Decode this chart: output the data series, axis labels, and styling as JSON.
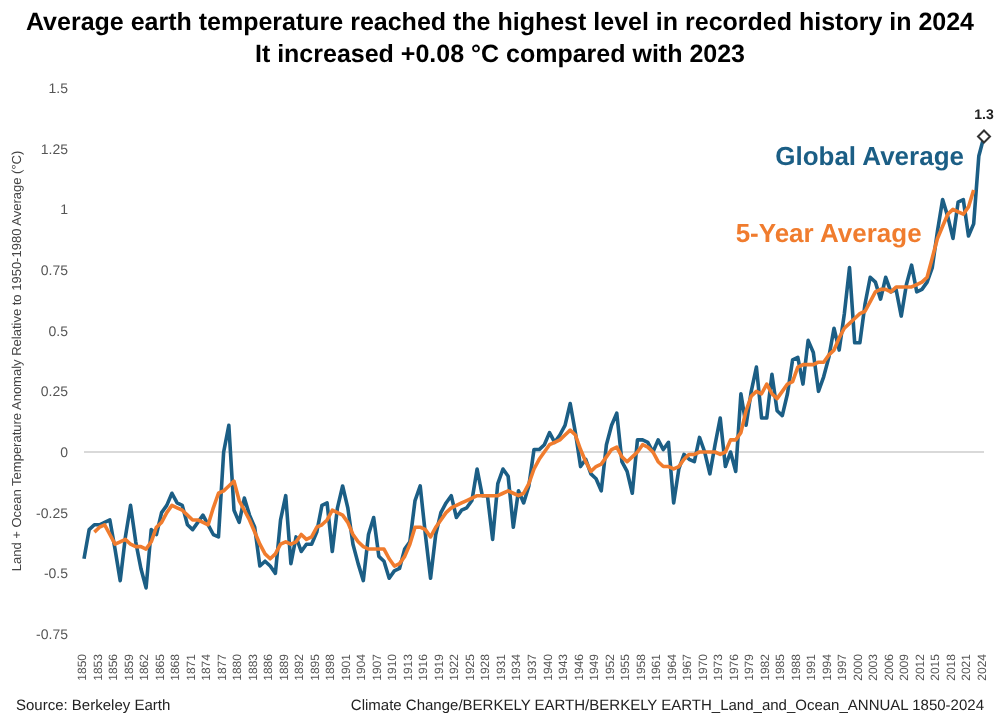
{
  "chart_data": {
    "type": "line",
    "title": "Average earth temperature reached the highest level in recorded history in 2024",
    "subtitle": "It increased +0.08 °C compared with 2023",
    "ylabel": "Land + Ocean Temperature Anomaly Relative to 1950-1980 Average (°C)",
    "categories": [
      "1850",
      null,
      null,
      "1853",
      null,
      null,
      "1856",
      null,
      null,
      "1859",
      null,
      null,
      "1862",
      null,
      null,
      "1865",
      null,
      null,
      "1868",
      null,
      null,
      "1871",
      null,
      null,
      "1874",
      null,
      null,
      "1877",
      null,
      null,
      "1880",
      null,
      null,
      "1883",
      null,
      null,
      "1886",
      null,
      null,
      "1889",
      null,
      null,
      "1892",
      null,
      null,
      "1895",
      null,
      null,
      "1898",
      null,
      null,
      "1901",
      null,
      null,
      "1904",
      null,
      null,
      "1907",
      null,
      null,
      "1910",
      null,
      null,
      "1913",
      null,
      null,
      "1916",
      null,
      null,
      "1919",
      null,
      null,
      "1922",
      null,
      null,
      "1925",
      null,
      null,
      "1928",
      null,
      null,
      "1931",
      null,
      null,
      "1934",
      null,
      null,
      "1937",
      null,
      null,
      "1940",
      null,
      null,
      "1943",
      null,
      null,
      "1946",
      null,
      null,
      "1949",
      null,
      null,
      "1952",
      null,
      null,
      "1955",
      null,
      null,
      "1958",
      null,
      null,
      "1961",
      null,
      null,
      "1964",
      null,
      null,
      "1967",
      null,
      null,
      "1970",
      null,
      null,
      "1973",
      null,
      null,
      "1976",
      null,
      null,
      "1979",
      null,
      null,
      "1982",
      null,
      null,
      "1985",
      null,
      null,
      "1988",
      null,
      null,
      "1991",
      null,
      null,
      "1994",
      null,
      null,
      "1997",
      null,
      null,
      "2000",
      null,
      null,
      "2003",
      null,
      null,
      "2006",
      null,
      null,
      "2009",
      null,
      null,
      "2012",
      null,
      null,
      "2015",
      null,
      null,
      "2018",
      null,
      null,
      "2021",
      null,
      null,
      "2024"
    ],
    "series": [
      {
        "name": "Global Average",
        "color": "#1b5e85",
        "values": [
          -0.44,
          -0.32,
          -0.3,
          -0.3,
          -0.29,
          -0.28,
          -0.4,
          -0.53,
          -0.35,
          -0.22,
          -0.37,
          -0.48,
          -0.56,
          -0.32,
          -0.34,
          -0.25,
          -0.22,
          -0.17,
          -0.21,
          -0.22,
          -0.3,
          -0.32,
          -0.29,
          -0.26,
          -0.3,
          -0.34,
          -0.35,
          0.0,
          0.11,
          -0.24,
          -0.29,
          -0.19,
          -0.26,
          -0.31,
          -0.47,
          -0.45,
          -0.47,
          -0.5,
          -0.28,
          -0.18,
          -0.46,
          -0.35,
          -0.41,
          -0.38,
          -0.38,
          -0.33,
          -0.22,
          -0.21,
          -0.41,
          -0.23,
          -0.14,
          -0.23,
          -0.38,
          -0.46,
          -0.53,
          -0.34,
          -0.27,
          -0.43,
          -0.45,
          -0.52,
          -0.49,
          -0.48,
          -0.4,
          -0.37,
          -0.2,
          -0.14,
          -0.34,
          -0.52,
          -0.34,
          -0.25,
          -0.21,
          -0.18,
          -0.27,
          -0.24,
          -0.23,
          -0.2,
          -0.07,
          -0.18,
          -0.18,
          -0.36,
          -0.13,
          -0.07,
          -0.1,
          -0.31,
          -0.16,
          -0.21,
          -0.14,
          0.01,
          0.01,
          0.03,
          0.08,
          0.04,
          0.07,
          0.11,
          0.2,
          0.08,
          -0.06,
          -0.03,
          -0.09,
          -0.11,
          -0.16,
          0.03,
          0.11,
          0.16,
          -0.04,
          -0.08,
          -0.17,
          0.05,
          0.05,
          0.04,
          0.0,
          0.05,
          0.01,
          0.04,
          -0.21,
          -0.07,
          -0.01,
          -0.03,
          -0.04,
          0.06,
          0.0,
          -0.09,
          0.03,
          0.14,
          -0.06,
          0.0,
          -0.08,
          0.24,
          0.11,
          0.25,
          0.35,
          0.14,
          0.14,
          0.32,
          0.17,
          0.15,
          0.24,
          0.38,
          0.39,
          0.28,
          0.46,
          0.41,
          0.25,
          0.31,
          0.39,
          0.51,
          0.42,
          0.57,
          0.76,
          0.45,
          0.45,
          0.61,
          0.72,
          0.7,
          0.63,
          0.72,
          0.66,
          0.67,
          0.56,
          0.69,
          0.77,
          0.66,
          0.67,
          0.7,
          0.76,
          0.91,
          1.04,
          0.97,
          0.88,
          1.03,
          1.04,
          0.89,
          0.94,
          1.22,
          1.3
        ]
      },
      {
        "name": "5-Year Average",
        "color": "#f07c2e",
        "values": [
          null,
          null,
          -0.33,
          -0.31,
          -0.3,
          -0.34,
          -0.38,
          -0.37,
          -0.36,
          -0.38,
          -0.39,
          -0.39,
          -0.4,
          -0.37,
          -0.31,
          -0.29,
          -0.25,
          -0.22,
          -0.23,
          -0.24,
          -0.26,
          -0.28,
          -0.28,
          -0.29,
          -0.3,
          -0.23,
          -0.17,
          -0.16,
          -0.14,
          -0.12,
          -0.2,
          -0.24,
          -0.28,
          -0.33,
          -0.38,
          -0.42,
          -0.44,
          -0.42,
          -0.38,
          -0.37,
          -0.38,
          -0.37,
          -0.34,
          -0.36,
          -0.35,
          -0.31,
          -0.3,
          -0.28,
          -0.24,
          -0.25,
          -0.26,
          -0.29,
          -0.34,
          -0.37,
          -0.39,
          -0.4,
          -0.4,
          -0.4,
          -0.4,
          -0.44,
          -0.47,
          -0.46,
          -0.43,
          -0.38,
          -0.31,
          -0.31,
          -0.32,
          -0.35,
          -0.31,
          -0.28,
          -0.25,
          -0.23,
          -0.22,
          -0.21,
          -0.2,
          -0.19,
          -0.18,
          -0.18,
          -0.18,
          -0.18,
          -0.18,
          -0.17,
          -0.16,
          -0.17,
          -0.18,
          -0.17,
          -0.13,
          -0.07,
          -0.03,
          0.0,
          0.03,
          0.04,
          0.05,
          0.07,
          0.09,
          0.07,
          0.01,
          -0.04,
          -0.08,
          -0.06,
          -0.05,
          -0.02,
          0.01,
          0.02,
          -0.02,
          -0.04,
          -0.02,
          0.0,
          0.03,
          0.02,
          0.0,
          -0.04,
          -0.06,
          -0.06,
          -0.07,
          -0.06,
          -0.03,
          -0.01,
          -0.01,
          0.0,
          0.0,
          0.0,
          0.0,
          -0.01,
          0.0,
          0.05,
          0.05,
          0.08,
          0.17,
          0.23,
          0.25,
          0.24,
          0.28,
          0.24,
          0.22,
          0.25,
          0.28,
          0.29,
          0.35,
          0.36,
          0.36,
          0.36,
          0.37,
          0.37,
          0.4,
          0.42,
          0.47,
          0.51,
          0.53,
          0.55,
          0.57,
          0.58,
          0.62,
          0.66,
          0.67,
          0.67,
          0.66,
          0.68,
          0.68,
          0.68,
          0.68,
          0.69,
          0.7,
          0.72,
          0.8,
          0.88,
          0.93,
          0.98,
          1.0,
          0.99,
          0.98,
          1.01,
          1.08,
          null,
          null
        ]
      }
    ],
    "ylim": [
      -0.75,
      1.5
    ],
    "yticks": [
      -0.75,
      -0.5,
      -0.25,
      0,
      0.25,
      0.5,
      0.75,
      1,
      1.25,
      1.5
    ],
    "ref_lines": [
      {
        "axis": "y",
        "value": 0,
        "color": "#d9d9d9"
      }
    ],
    "annotations": [
      {
        "text": "1.3",
        "x": "2024",
        "y": 1.3
      },
      "Source:  Berkeley Earth",
      "Climate Change/BERKELY EARTH/BERKELY EARTH_Land_and_Ocean_ANNUAL 1850-2024"
    ]
  }
}
